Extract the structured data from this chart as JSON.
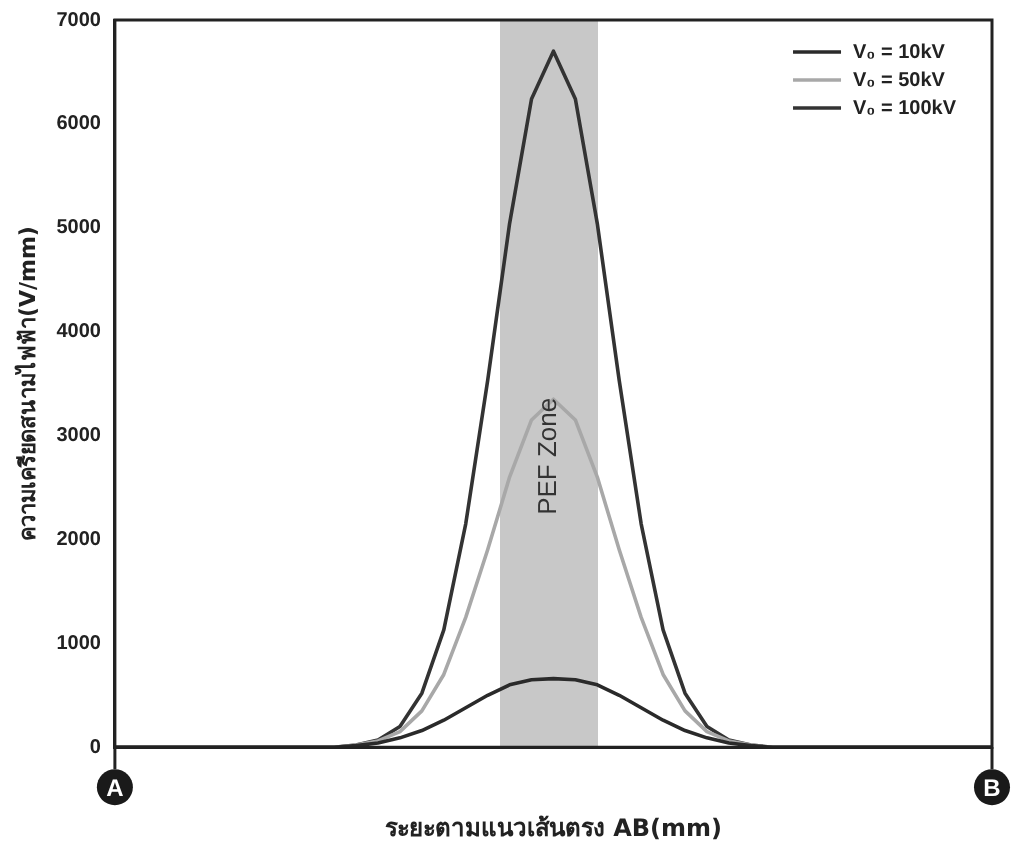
{
  "chart_data": {
    "type": "line",
    "xlabel": "ระยะตามแนวเส้นตรง AB(mm)",
    "ylabel": "ความเครียดสนามไฟฟ้า(V/mm)",
    "categories": [
      null,
      null,
      null,
      null,
      null,
      null,
      null,
      null,
      null,
      null,
      null,
      null,
      null,
      null,
      null,
      null,
      null,
      null,
      null,
      null,
      null,
      null,
      null,
      null,
      null,
      null,
      null,
      null,
      null,
      null,
      null,
      null,
      null,
      null,
      null,
      null,
      null,
      null,
      null,
      null,
      null
    ],
    "series": [
      {
        "name": "V₀ = 10kV",
        "color": "#2a2a2a",
        "values": [
          0,
          0,
          0,
          0,
          0,
          0,
          0,
          0,
          0,
          0,
          0,
          15,
          40,
          90,
          160,
          260,
          380,
          500,
          600,
          650,
          660,
          650,
          600,
          500,
          380,
          260,
          160,
          90,
          40,
          15,
          0,
          0,
          0,
          0,
          0,
          0,
          0,
          0,
          0,
          0,
          0
        ]
      },
      {
        "name": "V₀ = 50kV",
        "color": "#a8a8a8",
        "values": [
          0,
          0,
          0,
          0,
          0,
          0,
          0,
          0,
          0,
          0,
          0,
          20,
          60,
          150,
          350,
          700,
          1250,
          1900,
          2600,
          3150,
          3350,
          3150,
          2600,
          1900,
          1250,
          700,
          350,
          150,
          60,
          20,
          0,
          0,
          0,
          0,
          0,
          0,
          0,
          0,
          0,
          0,
          0
        ]
      },
      {
        "name": "V₀ = 100kV",
        "color": "#333333",
        "values": [
          0,
          0,
          0,
          0,
          0,
          0,
          0,
          0,
          0,
          0,
          0,
          20,
          70,
          200,
          520,
          1130,
          2150,
          3530,
          5040,
          6240,
          6700,
          6240,
          5040,
          3530,
          2150,
          1130,
          520,
          200,
          70,
          20,
          0,
          0,
          0,
          0,
          0,
          0,
          0,
          0,
          0,
          0,
          0
        ]
      }
    ],
    "ylim": [
      0,
      7000
    ],
    "yticks": [
      0,
      1000,
      2000,
      3000,
      4000,
      5000,
      6000,
      7000
    ],
    "tick_labels": "y",
    "grid": false,
    "legend": "top right",
    "marker": "none",
    "line_style": "solid",
    "annotations": [
      "A",
      "B",
      "PEF Zone"
    ]
  }
}
